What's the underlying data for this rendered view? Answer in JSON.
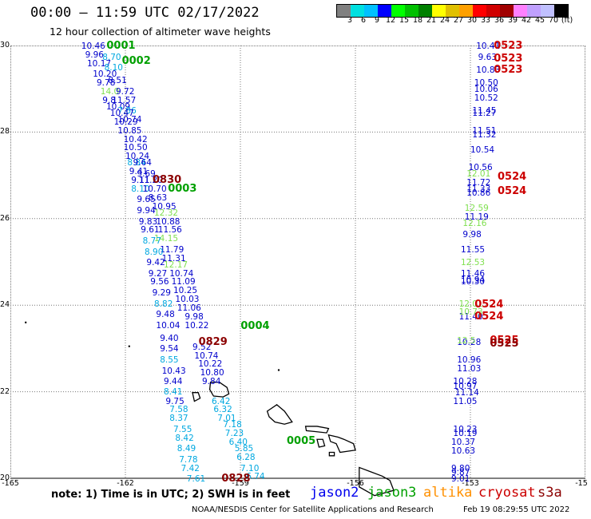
{
  "header": {
    "title": "00:00 – 11:59 UTC 02/17/2022",
    "subtitle": "12 hour collection of altimeter wave heights"
  },
  "colorbar": {
    "colors": [
      "#808080",
      "#00e0e0",
      "#00c0ff",
      "#0000ff",
      "#00ff00",
      "#00c000",
      "#008000",
      "#ffff00",
      "#e0c000",
      "#ffa000",
      "#ff0000",
      "#d00000",
      "#a00000",
      "#ff80ff",
      "#c0a0ff",
      "#c0c0ff",
      "#000000"
    ],
    "labels": [
      "3",
      "6",
      "9",
      "12",
      "15",
      "18",
      "21",
      "24",
      "27",
      "30",
      "33",
      "36",
      "39",
      "42",
      "45",
      "70",
      "(ft)"
    ]
  },
  "axes": {
    "y_labels": [
      "30",
      "28",
      "26",
      "24",
      "22",
      "20"
    ],
    "x_labels": [
      "-165",
      "-162",
      "-159",
      "-156",
      "-153",
      "-15"
    ]
  },
  "mission_colors": {
    "jason2": "#0000cc",
    "jason3": "#00a000",
    "altika": "#ff9000",
    "cryosat": "#cc0000",
    "s3a": "#8b0000",
    "low": "#00a8e0",
    "light": "#80e050"
  },
  "track_labels": [
    {
      "id": "0001",
      "lon": -162.2,
      "lat": 29.98,
      "mission": "jason3"
    },
    {
      "id": "0002",
      "lon": -161.8,
      "lat": 29.63,
      "mission": "jason3"
    },
    {
      "id": "0830",
      "lon": -161.0,
      "lat": 26.88,
      "mission": "s3a"
    },
    {
      "id": "0003",
      "lon": -160.6,
      "lat": 26.68,
      "mission": "jason3"
    },
    {
      "id": "0004",
      "lon": -158.7,
      "lat": 23.5,
      "mission": "jason3"
    },
    {
      "id": "0829",
      "lon": -159.8,
      "lat": 23.13,
      "mission": "s3a"
    },
    {
      "id": "0005",
      "lon": -157.5,
      "lat": 20.84,
      "mission": "jason3"
    },
    {
      "id": "0828",
      "lon": -159.2,
      "lat": 19.98,
      "mission": "s3a"
    },
    {
      "id": "0523",
      "lon": -152.1,
      "lat": 29.98,
      "mission": "cryosat"
    },
    {
      "id": "0523",
      "lon": -152.1,
      "lat": 29.69,
      "mission": "cryosat"
    },
    {
      "id": "0523",
      "lon": -152.1,
      "lat": 29.43,
      "mission": "cryosat"
    },
    {
      "id": "0524",
      "lon": -152.0,
      "lat": 26.95,
      "mission": "cryosat"
    },
    {
      "id": "0524",
      "lon": -152.0,
      "lat": 26.62,
      "mission": "cryosat"
    },
    {
      "id": "0524",
      "lon": -152.6,
      "lat": 24.0,
      "mission": "cryosat"
    },
    {
      "id": "0524",
      "lon": -152.6,
      "lat": 23.73,
      "mission": "cryosat"
    },
    {
      "id": "0525",
      "lon": -152.2,
      "lat": 23.18,
      "mission": "cryosat"
    },
    {
      "id": "0525",
      "lon": -152.2,
      "lat": 23.1,
      "mission": "s3a"
    }
  ],
  "wave_heights": [
    {
      "v": "10.46",
      "lon": -162.9,
      "lat": 29.98,
      "c": "jason2"
    },
    {
      "v": "9.96",
      "lon": -162.8,
      "lat": 29.78,
      "c": "jason2"
    },
    {
      "v": "8.70",
      "lon": -162.35,
      "lat": 29.73,
      "c": "low"
    },
    {
      "v": "10.17",
      "lon": -162.75,
      "lat": 29.58,
      "c": "jason2"
    },
    {
      "v": "8.10",
      "lon": -162.3,
      "lat": 29.48,
      "c": "low"
    },
    {
      "v": "10.20",
      "lon": -162.6,
      "lat": 29.33,
      "c": "jason2"
    },
    {
      "v": "9.78",
      "lon": -162.5,
      "lat": 29.13,
      "c": "jason2"
    },
    {
      "v": "8.51",
      "lon": -162.2,
      "lat": 29.18,
      "c": "jason2"
    },
    {
      "v": "14.0",
      "lon": -162.4,
      "lat": 28.93,
      "c": "light"
    },
    {
      "v": "9.72",
      "lon": -162.0,
      "lat": 28.93,
      "c": "jason2"
    },
    {
      "v": "9.8",
      "lon": -162.35,
      "lat": 28.73,
      "c": "jason2"
    },
    {
      "v": "11.57",
      "lon": -162.1,
      "lat": 28.73,
      "c": "jason2"
    },
    {
      "v": "10.09",
      "lon": -162.25,
      "lat": 28.58,
      "c": "jason2"
    },
    {
      "v": "7.86",
      "lon": -161.95,
      "lat": 28.48,
      "c": "low"
    },
    {
      "v": "10.47",
      "lon": -162.15,
      "lat": 28.43,
      "c": "jason2"
    },
    {
      "v": "10.74",
      "lon": -161.95,
      "lat": 28.28,
      "c": "jason2"
    },
    {
      "v": "10.29",
      "lon": -162.05,
      "lat": 28.23,
      "c": "jason2"
    },
    {
      "v": "10.85",
      "lon": -161.95,
      "lat": 28.03,
      "c": "jason2"
    },
    {
      "v": "10.42",
      "lon": -161.8,
      "lat": 27.83,
      "c": "jason2"
    },
    {
      "v": "10.50",
      "lon": -161.8,
      "lat": 27.63,
      "c": "jason2"
    },
    {
      "v": "10.24",
      "lon": -161.75,
      "lat": 27.43,
      "c": "jason2"
    },
    {
      "v": "8.84",
      "lon": -161.7,
      "lat": 27.28,
      "c": "low"
    },
    {
      "v": "9.64",
      "lon": -161.55,
      "lat": 27.28,
      "c": "jason2"
    },
    {
      "v": "9.41",
      "lon": -161.65,
      "lat": 27.08,
      "c": "jason2"
    },
    {
      "v": "9.69",
      "lon": -161.45,
      "lat": 27.03,
      "c": "jason2"
    },
    {
      "v": "9.11",
      "lon": -161.6,
      "lat": 26.88,
      "c": "jason2"
    },
    {
      "v": "11.20",
      "lon": -161.4,
      "lat": 26.88,
      "c": "jason2"
    },
    {
      "v": "8.10",
      "lon": -161.6,
      "lat": 26.68,
      "c": "low"
    },
    {
      "v": "10.70",
      "lon": -161.3,
      "lat": 26.68,
      "c": "jason2"
    },
    {
      "v": "8.63",
      "lon": -161.15,
      "lat": 26.48,
      "c": "jason2"
    },
    {
      "v": "9.65",
      "lon": -161.45,
      "lat": 26.43,
      "c": "jason2"
    },
    {
      "v": "10.95",
      "lon": -161.05,
      "lat": 26.28,
      "c": "jason2"
    },
    {
      "v": "9.94",
      "lon": -161.45,
      "lat": 26.18,
      "c": "jason2"
    },
    {
      "v": "12.32",
      "lon": -161.0,
      "lat": 26.13,
      "c": "light"
    },
    {
      "v": "9.83",
      "lon": -161.4,
      "lat": 25.93,
      "c": "jason2"
    },
    {
      "v": "10.88",
      "lon": -160.95,
      "lat": 25.93,
      "c": "jason2"
    },
    {
      "v": "9.61",
      "lon": -161.35,
      "lat": 25.73,
      "c": "jason2"
    },
    {
      "v": "11.56",
      "lon": -160.9,
      "lat": 25.73,
      "c": "jason2"
    },
    {
      "v": "14.15",
      "lon": -161.0,
      "lat": 25.53,
      "c": "light"
    },
    {
      "v": "8.77",
      "lon": -161.3,
      "lat": 25.48,
      "c": "low"
    },
    {
      "v": "11.79",
      "lon": -160.85,
      "lat": 25.28,
      "c": "jason2"
    },
    {
      "v": "8.90",
      "lon": -161.25,
      "lat": 25.23,
      "c": "low"
    },
    {
      "v": "11.31",
      "lon": -160.8,
      "lat": 25.08,
      "c": "jason2"
    },
    {
      "v": "12.17",
      "lon": -160.75,
      "lat": 24.93,
      "c": "light"
    },
    {
      "v": "9.42",
      "lon": -161.2,
      "lat": 24.98,
      "c": "jason2"
    },
    {
      "v": "9.27",
      "lon": -161.15,
      "lat": 24.73,
      "c": "jason2"
    },
    {
      "v": "10.74",
      "lon": -160.6,
      "lat": 24.73,
      "c": "jason2"
    },
    {
      "v": "9.56",
      "lon": -161.1,
      "lat": 24.53,
      "c": "jason2"
    },
    {
      "v": "11.09",
      "lon": -160.55,
      "lat": 24.53,
      "c": "jason2"
    },
    {
      "v": "9.29",
      "lon": -161.05,
      "lat": 24.28,
      "c": "jason2"
    },
    {
      "v": "10.25",
      "lon": -160.5,
      "lat": 24.33,
      "c": "jason2"
    },
    {
      "v": "10.03",
      "lon": -160.45,
      "lat": 24.13,
      "c": "jason2"
    },
    {
      "v": "8.82",
      "lon": -161.0,
      "lat": 24.03,
      "c": "low"
    },
    {
      "v": "11.06",
      "lon": -160.4,
      "lat": 23.93,
      "c": "jason2"
    },
    {
      "v": "9.48",
      "lon": -160.95,
      "lat": 23.78,
      "c": "jason2"
    },
    {
      "v": "9.98",
      "lon": -160.2,
      "lat": 23.73,
      "c": "jason2"
    },
    {
      "v": "10.04",
      "lon": -160.95,
      "lat": 23.53,
      "c": "jason2"
    },
    {
      "v": "10.22",
      "lon": -160.2,
      "lat": 23.53,
      "c": "jason2"
    },
    {
      "v": "9.40",
      "lon": -160.85,
      "lat": 23.23,
      "c": "jason2"
    },
    {
      "v": "9.52",
      "lon": -160.0,
      "lat": 23.03,
      "c": "jason2"
    },
    {
      "v": "9.54",
      "lon": -160.85,
      "lat": 22.98,
      "c": "jason2"
    },
    {
      "v": "10.74",
      "lon": -159.95,
      "lat": 22.83,
      "c": "jason2"
    },
    {
      "v": "8.55",
      "lon": -160.85,
      "lat": 22.73,
      "c": "low"
    },
    {
      "v": "10.22",
      "lon": -159.85,
      "lat": 22.63,
      "c": "jason2"
    },
    {
      "v": "10.43",
      "lon": -160.8,
      "lat": 22.48,
      "c": "jason2"
    },
    {
      "v": "10.80",
      "lon": -159.8,
      "lat": 22.43,
      "c": "jason2"
    },
    {
      "v": "9.44",
      "lon": -160.75,
      "lat": 22.23,
      "c": "jason2"
    },
    {
      "v": "9.84",
      "lon": -159.75,
      "lat": 22.23,
      "c": "jason2"
    },
    {
      "v": "8.41",
      "lon": -160.75,
      "lat": 22.0,
      "c": "low"
    },
    {
      "v": "9.75",
      "lon": -160.7,
      "lat": 21.78,
      "c": "jason2"
    },
    {
      "v": "6.42",
      "lon": -159.5,
      "lat": 21.78,
      "c": "low"
    },
    {
      "v": "7.58",
      "lon": -160.6,
      "lat": 21.58,
      "c": "low"
    },
    {
      "v": "6.32",
      "lon": -159.45,
      "lat": 21.58,
      "c": "low"
    },
    {
      "v": "8.37",
      "lon": -160.6,
      "lat": 21.38,
      "c": "low"
    },
    {
      "v": "7.01",
      "lon": -159.35,
      "lat": 21.38,
      "c": "low"
    },
    {
      "v": "7.18",
      "lon": -159.2,
      "lat": 21.23,
      "c": "low"
    },
    {
      "v": "7.55",
      "lon": -160.5,
      "lat": 21.13,
      "c": "low"
    },
    {
      "v": "7.23",
      "lon": -159.15,
      "lat": 21.03,
      "c": "low"
    },
    {
      "v": "8.42",
      "lon": -160.45,
      "lat": 20.93,
      "c": "low"
    },
    {
      "v": "6.40",
      "lon": -159.05,
      "lat": 20.83,
      "c": "low"
    },
    {
      "v": "8.49",
      "lon": -160.4,
      "lat": 20.68,
      "c": "low"
    },
    {
      "v": "5.85",
      "lon": -158.9,
      "lat": 20.68,
      "c": "low"
    },
    {
      "v": "7.78",
      "lon": -160.35,
      "lat": 20.43,
      "c": "low"
    },
    {
      "v": "6.28",
      "lon": -158.85,
      "lat": 20.48,
      "c": "low"
    },
    {
      "v": "7.42",
      "lon": -160.3,
      "lat": 20.23,
      "c": "low"
    },
    {
      "v": "7.10",
      "lon": -158.75,
      "lat": 20.23,
      "c": "low"
    },
    {
      "v": "7.61",
      "lon": -160.15,
      "lat": 19.98,
      "c": "low"
    },
    {
      "v": "6.74",
      "lon": -158.6,
      "lat": 20.03,
      "c": "low"
    },
    {
      "v": "10.41",
      "lon": -152.6,
      "lat": 29.98,
      "c": "jason2"
    },
    {
      "v": "9.63",
      "lon": -152.55,
      "lat": 29.73,
      "c": "jason2"
    },
    {
      "v": "10.83",
      "lon": -152.6,
      "lat": 29.43,
      "c": "jason2"
    },
    {
      "v": "10.50",
      "lon": -152.65,
      "lat": 29.13,
      "c": "jason2"
    },
    {
      "v": "10.06",
      "lon": -152.65,
      "lat": 28.98,
      "c": "jason2"
    },
    {
      "v": "10.52",
      "lon": -152.65,
      "lat": 28.78,
      "c": "jason2"
    },
    {
      "v": "11.45",
      "lon": -152.7,
      "lat": 28.48,
      "c": "jason2"
    },
    {
      "v": "11.27",
      "lon": -152.7,
      "lat": 28.43,
      "c": "jason2"
    },
    {
      "v": "11.51",
      "lon": -152.7,
      "lat": 28.03,
      "c": "jason2"
    },
    {
      "v": "11.32",
      "lon": -152.7,
      "lat": 27.93,
      "c": "jason2"
    },
    {
      "v": "10.54",
      "lon": -152.75,
      "lat": 27.58,
      "c": "jason2"
    },
    {
      "v": "10.56",
      "lon": -152.8,
      "lat": 27.18,
      "c": "jason2"
    },
    {
      "v": "12.01",
      "lon": -152.85,
      "lat": 27.03,
      "c": "light"
    },
    {
      "v": "11.72",
      "lon": -152.85,
      "lat": 26.83,
      "c": "jason2"
    },
    {
      "v": "11.33",
      "lon": -152.85,
      "lat": 26.68,
      "c": "jason2"
    },
    {
      "v": "10.86",
      "lon": -152.85,
      "lat": 26.58,
      "c": "jason2"
    },
    {
      "v": "12.59",
      "lon": -152.9,
      "lat": 26.23,
      "c": "light"
    },
    {
      "v": "11.19",
      "lon": -152.9,
      "lat": 26.03,
      "c": "jason2"
    },
    {
      "v": "12.16",
      "lon": -152.95,
      "lat": 25.88,
      "c": "light"
    },
    {
      "v": "9.98",
      "lon": -152.95,
      "lat": 25.63,
      "c": "jason2"
    },
    {
      "v": "11.55",
      "lon": -153.0,
      "lat": 25.28,
      "c": "jason2"
    },
    {
      "v": "12.53",
      "lon": -153.0,
      "lat": 24.98,
      "c": "light"
    },
    {
      "v": "11.46",
      "lon": -153.0,
      "lat": 24.73,
      "c": "jason2"
    },
    {
      "v": "10.94",
      "lon": -153.0,
      "lat": 24.58,
      "c": "jason2"
    },
    {
      "v": "10.30",
      "lon": -153.0,
      "lat": 24.53,
      "c": "jason2"
    },
    {
      "v": "12.01",
      "lon": -153.05,
      "lat": 24.03,
      "c": "light"
    },
    {
      "v": "11.40",
      "lon": -153.05,
      "lat": 23.73,
      "c": "jason2"
    },
    {
      "v": "10.73",
      "lon": -153.05,
      "lat": 23.83,
      "c": "light"
    },
    {
      "v": "10.28",
      "lon": -153.1,
      "lat": 23.13,
      "c": "jason2"
    },
    {
      "v": "12.5",
      "lon": -153.1,
      "lat": 23.18,
      "c": "light"
    },
    {
      "v": "10.96",
      "lon": -153.1,
      "lat": 22.73,
      "c": "jason2"
    },
    {
      "v": "11.03",
      "lon": -153.1,
      "lat": 22.53,
      "c": "jason2"
    },
    {
      "v": "10.28",
      "lon": -153.2,
      "lat": 22.23,
      "c": "jason2"
    },
    {
      "v": "10.97",
      "lon": -153.2,
      "lat": 22.13,
      "c": "jason2"
    },
    {
      "v": "11.14",
      "lon": -153.15,
      "lat": 21.98,
      "c": "jason2"
    },
    {
      "v": "11.05",
      "lon": -153.2,
      "lat": 21.78,
      "c": "jason2"
    },
    {
      "v": "10.23",
      "lon": -153.2,
      "lat": 21.13,
      "c": "jason2"
    },
    {
      "v": "10.19",
      "lon": -153.2,
      "lat": 21.03,
      "c": "jason2"
    },
    {
      "v": "10.37",
      "lon": -153.25,
      "lat": 20.83,
      "c": "jason2"
    },
    {
      "v": "10.63",
      "lon": -153.25,
      "lat": 20.63,
      "c": "jason2"
    },
    {
      "v": "9.80",
      "lon": -153.25,
      "lat": 20.23,
      "c": "jason2"
    },
    {
      "v": "9.87",
      "lon": -153.25,
      "lat": 20.13,
      "c": "jason2"
    },
    {
      "v": "9.01",
      "lon": -153.25,
      "lat": 19.98,
      "c": "jason2"
    }
  ],
  "islands": [
    {
      "name": "kauai",
      "points": [
        [
          -159.78,
          22.22
        ],
        [
          -159.55,
          22.22
        ],
        [
          -159.35,
          22.1
        ],
        [
          -159.3,
          21.95
        ],
        [
          -159.45,
          21.88
        ],
        [
          -159.7,
          21.9
        ],
        [
          -159.8,
          22.05
        ]
      ]
    },
    {
      "name": "niihau",
      "points": [
        [
          -160.25,
          21.98
        ],
        [
          -160.1,
          21.98
        ],
        [
          -160.05,
          21.85
        ],
        [
          -160.2,
          21.78
        ]
      ]
    },
    {
      "name": "oahu",
      "points": [
        [
          -158.3,
          21.55
        ],
        [
          -158.05,
          21.7
        ],
        [
          -157.85,
          21.55
        ],
        [
          -157.65,
          21.3
        ],
        [
          -157.85,
          21.25
        ],
        [
          -158.1,
          21.3
        ],
        [
          -158.25,
          21.42
        ]
      ]
    },
    {
      "name": "molokai",
      "points": [
        [
          -157.3,
          21.2
        ],
        [
          -157.0,
          21.2
        ],
        [
          -156.7,
          21.15
        ],
        [
          -156.75,
          21.05
        ],
        [
          -157.05,
          21.08
        ],
        [
          -157.28,
          21.1
        ]
      ]
    },
    {
      "name": "lanai",
      "points": [
        [
          -157.0,
          20.9
        ],
        [
          -156.85,
          20.9
        ],
        [
          -156.8,
          20.75
        ],
        [
          -156.95,
          20.72
        ]
      ]
    },
    {
      "name": "maui",
      "points": [
        [
          -156.7,
          21.0
        ],
        [
          -156.45,
          20.95
        ],
        [
          -156.3,
          20.9
        ],
        [
          -156.05,
          20.8
        ],
        [
          -156.0,
          20.65
        ],
        [
          -156.4,
          20.6
        ],
        [
          -156.5,
          20.8
        ],
        [
          -156.65,
          20.85
        ]
      ]
    },
    {
      "name": "kahoolawe",
      "points": [
        [
          -156.68,
          20.6
        ],
        [
          -156.55,
          20.6
        ],
        [
          -156.55,
          20.52
        ],
        [
          -156.68,
          20.52
        ]
      ]
    },
    {
      "name": "hawaii",
      "points": [
        [
          -155.9,
          20.25
        ],
        [
          -155.6,
          20.15
        ],
        [
          -155.3,
          20.05
        ],
        [
          -155.1,
          19.95
        ],
        [
          -155.0,
          19.72
        ],
        [
          -155.5,
          19.6
        ],
        [
          -155.9,
          19.8
        ]
      ]
    }
  ],
  "specks": [
    {
      "lon": -164.6,
      "lat": 23.6
    },
    {
      "lon": -161.9,
      "lat": 23.05
    },
    {
      "lon": -158.0,
      "lat": 22.5
    }
  ],
  "note": "note: 1) Time is in UTC; 2) SWH is in feet",
  "legend": [
    {
      "name": "jason2",
      "color": "#0000ee",
      "x": 388
    },
    {
      "name": "jason3",
      "color": "#00a000",
      "x": 460
    },
    {
      "name": "altika",
      "color": "#ff9000",
      "x": 530
    },
    {
      "name": "cryosat",
      "color": "#cc0000",
      "x": 599
    },
    {
      "name": "s3a",
      "color": "#8b0000",
      "x": 673
    }
  ],
  "credit": "NOAA/NESDIS Center for Satellite Applications and Research",
  "timestamp": "Feb 19 08:29:55 UTC 2022"
}
